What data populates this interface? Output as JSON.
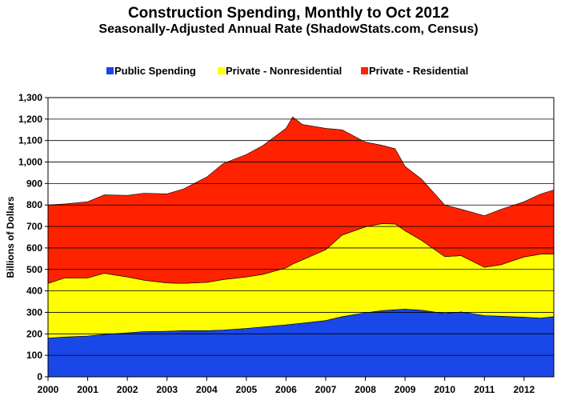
{
  "chart_data": {
    "type": "area",
    "stacked": true,
    "title": "Construction Spending, Monthly to Oct 2012",
    "subtitle": "Seasonally-Adjusted Annual Rate (ShadowStats.com, Census)",
    "ylabel": "Billions of Dollars",
    "xlabel": "",
    "ylim": [
      0,
      1300
    ],
    "yticks": [
      0,
      100,
      200,
      300,
      400,
      500,
      600,
      700,
      800,
      900,
      1000,
      1100,
      1200,
      1300
    ],
    "ytick_labels": [
      "0",
      "100",
      "200",
      "300",
      "400",
      "500",
      "600",
      "700",
      "800",
      "900",
      "1,000",
      "1,100",
      "1,200",
      "1,300"
    ],
    "x_range": [
      "2000-01",
      "2012-10"
    ],
    "xtick_labels": [
      "2000",
      "2001",
      "2002",
      "2003",
      "2004",
      "2005",
      "2006",
      "2007",
      "2008",
      "2009",
      "2010",
      "2011",
      "2012"
    ],
    "grid": "horizontal",
    "legend_position": "top",
    "x": [
      "2000-01",
      "2000-06",
      "2001-01",
      "2001-06",
      "2002-01",
      "2002-06",
      "2003-01",
      "2003-06",
      "2004-01",
      "2004-06",
      "2005-01",
      "2005-06",
      "2006-01",
      "2006-03",
      "2006-06",
      "2007-01",
      "2007-06",
      "2008-01",
      "2008-06",
      "2008-10",
      "2009-01",
      "2009-06",
      "2010-01",
      "2010-06",
      "2011-01",
      "2011-06",
      "2012-01",
      "2012-06",
      "2012-10"
    ],
    "series": [
      {
        "name": "Public Spending",
        "color": "#1a47e8",
        "values": [
          180,
          185,
          190,
          197,
          205,
          210,
          212,
          215,
          215,
          218,
          225,
          232,
          242,
          245,
          250,
          262,
          280,
          298,
          308,
          312,
          315,
          310,
          295,
          302,
          285,
          282,
          278,
          273,
          280
        ]
      },
      {
        "name": "Private - Nonresidential",
        "color": "#ffff00",
        "values": [
          255,
          275,
          270,
          285,
          260,
          240,
          225,
          220,
          225,
          235,
          240,
          245,
          265,
          280,
          295,
          330,
          380,
          400,
          405,
          400,
          365,
          325,
          265,
          262,
          225,
          240,
          280,
          298,
          292
        ]
      },
      {
        "name": "Private - Residential",
        "color": "#ff2200",
        "values": [
          365,
          345,
          355,
          365,
          380,
          405,
          415,
          440,
          490,
          540,
          570,
          600,
          650,
          685,
          630,
          565,
          490,
          395,
          365,
          350,
          300,
          285,
          240,
          216,
          240,
          258,
          257,
          280,
          298
        ]
      }
    ]
  }
}
